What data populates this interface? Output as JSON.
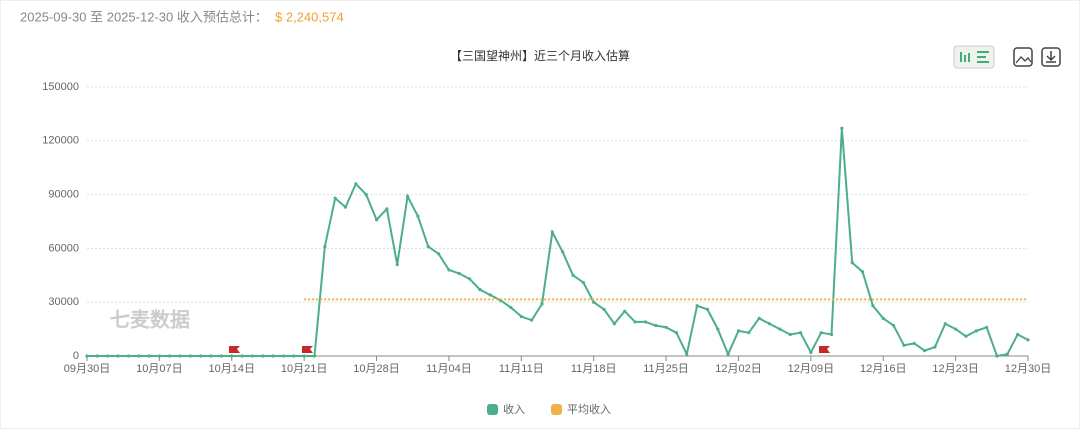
{
  "header": {
    "range": "2025-09-30 至 2025-12-30 收入预估总计：",
    "total": "$ 2,240,574"
  },
  "watermark": "七麦数据",
  "chart_data": {
    "type": "line",
    "title": "【三国望神州】近三个月收入估算",
    "categories": [
      "09月30日",
      null,
      null,
      null,
      null,
      null,
      null,
      "10月07日",
      null,
      null,
      null,
      null,
      null,
      null,
      "10月14日",
      null,
      null,
      null,
      null,
      null,
      null,
      "10月21日",
      null,
      null,
      null,
      null,
      null,
      null,
      "10月28日",
      null,
      null,
      null,
      null,
      null,
      null,
      "11月04日",
      null,
      null,
      null,
      null,
      null,
      null,
      "11月11日",
      null,
      null,
      null,
      null,
      null,
      null,
      "11月18日",
      null,
      null,
      null,
      null,
      null,
      null,
      "11月25日",
      null,
      null,
      null,
      null,
      null,
      null,
      "12月02日",
      null,
      null,
      null,
      null,
      null,
      null,
      "12月09日",
      null,
      null,
      null,
      null,
      null,
      null,
      "12月16日",
      null,
      null,
      null,
      null,
      null,
      null,
      "12月23日",
      null,
      null,
      null,
      null,
      null,
      null,
      "12月30日"
    ],
    "series": [
      {
        "name": "收入",
        "color": "#4caf8a",
        "values": [
          0,
          0,
          0,
          0,
          0,
          0,
          0,
          0,
          0,
          0,
          0,
          0,
          0,
          0,
          0,
          0,
          0,
          0,
          0,
          0,
          0,
          0,
          0,
          61000,
          88000,
          83000,
          96000,
          90000,
          76000,
          82000,
          51000,
          89000,
          78000,
          61000,
          57000,
          48000,
          46000,
          43000,
          37000,
          34000,
          31000,
          27000,
          22000,
          20000,
          29000,
          69000,
          58000,
          45000,
          41000,
          30000,
          26000,
          18000,
          25000,
          19000,
          19000,
          17000,
          16000,
          13000,
          1000,
          28000,
          26000,
          15000,
          1000,
          14000,
          13000,
          21000,
          18000,
          15000,
          12000,
          13000,
          2000,
          13000,
          12000,
          127000,
          52000,
          47000,
          28000,
          21000,
          17000,
          6000,
          7000,
          3000,
          5000,
          18000,
          15000,
          11000,
          14000,
          16000,
          0,
          1000,
          12000,
          9000
        ]
      },
      {
        "name": "平均收入",
        "color": "#f0b04a",
        "values": [
          null,
          null,
          null,
          null,
          null,
          null,
          null,
          null,
          null,
          null,
          null,
          null,
          null,
          null,
          null,
          null,
          null,
          null,
          null,
          null,
          null,
          31557,
          31557,
          31557,
          31557,
          31557,
          31557,
          31557,
          31557,
          31557,
          31557,
          31557,
          31557,
          31557,
          31557,
          31557,
          31557,
          31557,
          31557,
          31557,
          31557,
          31557,
          31557,
          31557,
          31557,
          31557,
          31557,
          31557,
          31557,
          31557,
          31557,
          31557,
          31557,
          31557,
          31557,
          31557,
          31557,
          31557,
          31557,
          31557,
          31557,
          31557,
          31557,
          31557,
          31557,
          31557,
          31557,
          31557,
          31557,
          31557,
          31557,
          31557,
          31557,
          31557,
          31557,
          31557,
          31557,
          31557,
          31557,
          31557,
          31557,
          31557,
          31557,
          31557,
          31557,
          31557,
          31557,
          31557,
          31557,
          31557,
          31557,
          31557
        ]
      }
    ],
    "ylim": [
      0,
      150000
    ],
    "yticks": [
      0,
      30000,
      60000,
      90000,
      120000,
      150000
    ],
    "grid": true
  }
}
